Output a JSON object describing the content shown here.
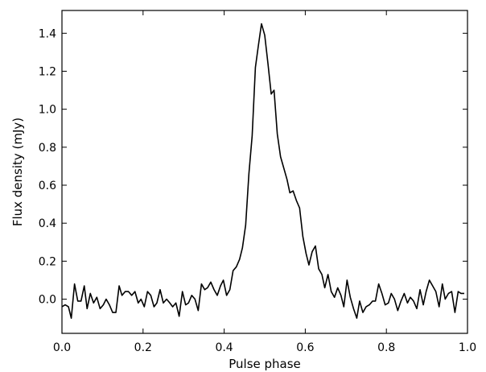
{
  "chart_data": {
    "type": "line",
    "title": "",
    "xlabel": "Pulse phase",
    "ylabel": "Flux density (mJy)",
    "xlim": [
      0.0,
      1.0
    ],
    "ylim": [
      -0.18,
      1.52
    ],
    "xticks": [
      0.0,
      0.2,
      0.4,
      0.6,
      0.8,
      1.0
    ],
    "xtick_labels": [
      "0.0",
      "0.2",
      "0.4",
      "0.6",
      "0.8",
      "1.0"
    ],
    "yticks": [
      0.0,
      0.2,
      0.4,
      0.6,
      0.8,
      1.0,
      1.2,
      1.4
    ],
    "ytick_labels": [
      "0.0",
      "0.2",
      "0.4",
      "0.6",
      "0.8",
      "1.0",
      "1.2",
      "1.4"
    ],
    "tick_direction": "in",
    "grid": false,
    "line_color": "#000000",
    "series": [
      {
        "x": [
          0.0,
          0.008,
          0.016,
          0.023,
          0.031,
          0.039,
          0.047,
          0.055,
          0.062,
          0.07,
          0.078,
          0.086,
          0.094,
          0.102,
          0.109,
          0.117,
          0.125,
          0.133,
          0.141,
          0.148,
          0.156,
          0.164,
          0.172,
          0.18,
          0.188,
          0.195,
          0.203,
          0.211,
          0.219,
          0.227,
          0.234,
          0.242,
          0.25,
          0.258,
          0.266,
          0.273,
          0.281,
          0.289,
          0.297,
          0.305,
          0.312,
          0.32,
          0.328,
          0.336,
          0.344,
          0.352,
          0.359,
          0.367,
          0.375,
          0.383,
          0.391,
          0.398,
          0.406,
          0.414,
          0.422,
          0.43,
          0.438,
          0.445,
          0.453,
          0.461,
          0.469,
          0.477,
          0.484,
          0.492,
          0.5,
          0.508,
          0.516,
          0.523,
          0.531,
          0.539,
          0.547,
          0.555,
          0.562,
          0.57,
          0.578,
          0.586,
          0.594,
          0.602,
          0.609,
          0.617,
          0.625,
          0.633,
          0.641,
          0.648,
          0.656,
          0.664,
          0.672,
          0.68,
          0.688,
          0.695,
          0.703,
          0.711,
          0.719,
          0.727,
          0.734,
          0.742,
          0.75,
          0.758,
          0.766,
          0.773,
          0.781,
          0.789,
          0.797,
          0.805,
          0.812,
          0.82,
          0.828,
          0.836,
          0.844,
          0.852,
          0.859,
          0.867,
          0.875,
          0.883,
          0.891,
          0.898,
          0.906,
          0.914,
          0.922,
          0.93,
          0.938,
          0.945,
          0.953,
          0.961,
          0.969,
          0.977,
          0.984,
          0.992
        ],
        "y": [
          -0.04,
          -0.03,
          -0.04,
          -0.1,
          0.08,
          -0.01,
          -0.01,
          0.07,
          -0.05,
          0.03,
          -0.02,
          0.01,
          -0.05,
          -0.03,
          0.0,
          -0.03,
          -0.07,
          -0.07,
          0.07,
          0.02,
          0.04,
          0.04,
          0.02,
          0.04,
          -0.02,
          0.0,
          -0.04,
          0.04,
          0.02,
          -0.04,
          -0.02,
          0.05,
          -0.02,
          0.0,
          -0.02,
          -0.04,
          -0.02,
          -0.09,
          0.04,
          -0.03,
          -0.02,
          0.02,
          0.0,
          -0.06,
          0.08,
          0.05,
          0.06,
          0.09,
          0.05,
          0.02,
          0.07,
          0.1,
          0.02,
          0.05,
          0.15,
          0.17,
          0.21,
          0.27,
          0.39,
          0.66,
          0.86,
          1.22,
          1.33,
          1.45,
          1.39,
          1.24,
          1.08,
          1.1,
          0.87,
          0.75,
          0.69,
          0.63,
          0.56,
          0.57,
          0.52,
          0.48,
          0.33,
          0.24,
          0.18,
          0.25,
          0.28,
          0.16,
          0.13,
          0.06,
          0.13,
          0.04,
          0.01,
          0.06,
          0.02,
          -0.04,
          0.1,
          0.01,
          -0.05,
          -0.1,
          -0.01,
          -0.07,
          -0.04,
          -0.03,
          -0.01,
          -0.01,
          0.08,
          0.03,
          -0.03,
          -0.02,
          0.03,
          0.0,
          -0.06,
          -0.01,
          0.03,
          -0.02,
          0.01,
          -0.01,
          -0.05,
          0.05,
          -0.03,
          0.04,
          0.1,
          0.07,
          0.04,
          -0.04,
          0.08,
          0.0,
          0.03,
          0.04,
          -0.07,
          0.04,
          0.03,
          0.03
        ]
      }
    ]
  }
}
